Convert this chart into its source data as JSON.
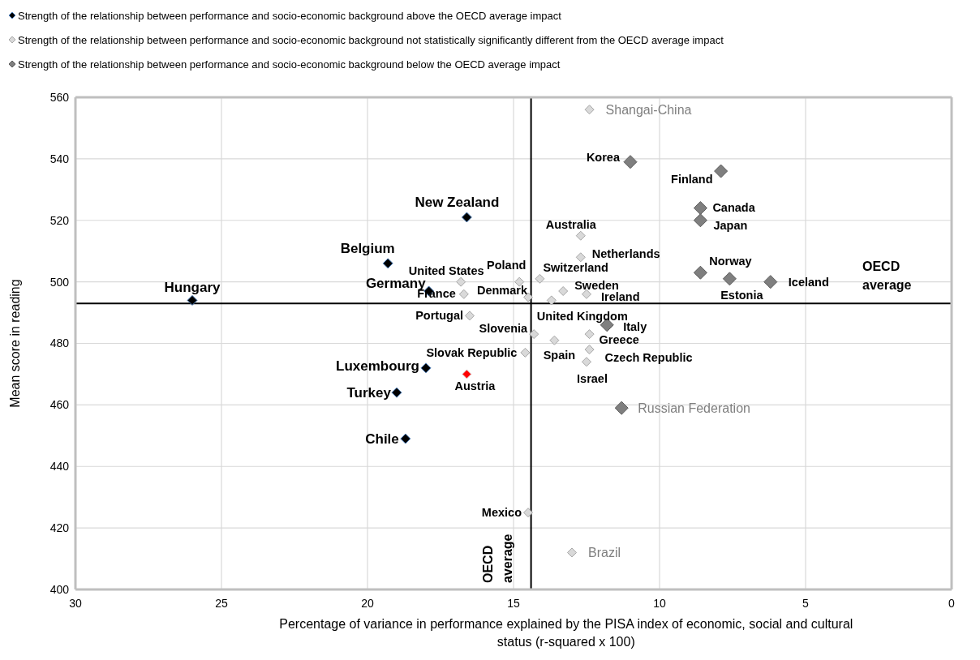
{
  "chart_data": {
    "type": "scatter",
    "xlabel": "Percentage of variance in performance explained by the PISA index of economic, social and cultural status (r-squared x 100)",
    "ylabel": "Mean score in reading",
    "xlim": [
      30,
      0
    ],
    "xticks": [
      30,
      25,
      20,
      15,
      10,
      5,
      0
    ],
    "ylim": [
      400,
      560
    ],
    "yticks": [
      400,
      420,
      440,
      460,
      480,
      500,
      520,
      540,
      560
    ],
    "grid": true,
    "legend": "top left",
    "marker": "diamond",
    "series": [
      {
        "name": "Strength of the relationship between performance and socio-economic background above the OECD average impact",
        "color": "#000000",
        "x": [
          26.0,
          19.3,
          17.9,
          16.6,
          18.0,
          19.0,
          18.7
        ],
        "values": [
          494,
          506,
          497,
          521,
          472,
          464,
          449
        ]
      },
      {
        "name": "Strength of the relationship between performance and socio-economic background not statistically significantly different from the OECD average impact",
        "color": "#d9d9d9",
        "x": [
          16.8,
          16.7,
          16.5,
          14.8,
          14.5,
          14.1,
          13.3,
          13.7,
          12.5,
          12.7,
          12.7,
          14.3,
          13.6,
          14.6,
          12.4,
          12.4,
          12.5,
          12.4,
          14.5,
          13.0
        ],
        "values": [
          500,
          496,
          489,
          500,
          495,
          501,
          497,
          494,
          496,
          515,
          508,
          483,
          481,
          477,
          483,
          478,
          474,
          556,
          425,
          412
        ]
      },
      {
        "name": "Strength of the relationship between performance and socio-economic background below the OECD average impact",
        "color": "#7f7f7f",
        "x": [
          11.0,
          7.9,
          8.6,
          8.6,
          8.6,
          7.6,
          6.2,
          11.8,
          11.3
        ],
        "values": [
          539,
          536,
          524,
          520,
          503,
          501,
          500,
          486,
          459
        ]
      },
      {
        "color": "#ff0000",
        "x": [
          16.6
        ],
        "values": [
          470
        ]
      }
    ],
    "ref_lines": [
      {
        "axis": "x",
        "value": 14.4,
        "label": "OECD average",
        "color": "#000000"
      },
      {
        "axis": "y",
        "value": 493,
        "label": "OECD average",
        "color": "#000000"
      }
    ],
    "annotations": [
      {
        "text": "Hungary",
        "x": 26.0,
        "y": 494
      },
      {
        "text": "Belgium",
        "x": 19.3,
        "y": 506
      },
      {
        "text": "Germany",
        "x": 17.9,
        "y": 497
      },
      {
        "text": "New Zealand",
        "x": 16.6,
        "y": 521
      },
      {
        "text": "Luxembourg",
        "x": 18.0,
        "y": 472
      },
      {
        "text": "Turkey",
        "x": 19.0,
        "y": 464
      },
      {
        "text": "Chile",
        "x": 18.7,
        "y": 449
      },
      {
        "text": "United States",
        "x": 16.8,
        "y": 500
      },
      {
        "text": "France",
        "x": 16.7,
        "y": 496
      },
      {
        "text": "Portugal",
        "x": 16.5,
        "y": 489
      },
      {
        "text": "Poland",
        "x": 14.8,
        "y": 500
      },
      {
        "text": "Denmark",
        "x": 14.5,
        "y": 495
      },
      {
        "text": "Switzerland",
        "x": 14.1,
        "y": 501
      },
      {
        "text": "Sweden",
        "x": 13.3,
        "y": 497
      },
      {
        "text": "United Kingdom",
        "x": 13.7,
        "y": 494
      },
      {
        "text": "Ireland",
        "x": 12.5,
        "y": 496
      },
      {
        "text": "Australia",
        "x": 12.7,
        "y": 515
      },
      {
        "text": "Netherlands",
        "x": 12.7,
        "y": 508
      },
      {
        "text": "Slovenia",
        "x": 14.3,
        "y": 483
      },
      {
        "text": "Spain",
        "x": 13.6,
        "y": 481
      },
      {
        "text": "Slovak Republic",
        "x": 14.6,
        "y": 477
      },
      {
        "text": "Greece",
        "x": 12.4,
        "y": 483
      },
      {
        "text": "Czech Republic",
        "x": 12.4,
        "y": 478
      },
      {
        "text": "Israel",
        "x": 12.5,
        "y": 474
      },
      {
        "text": "Shangai-China",
        "x": 12.4,
        "y": 556
      },
      {
        "text": "Mexico",
        "x": 14.5,
        "y": 425
      },
      {
        "text": "Brazil",
        "x": 13.0,
        "y": 412
      },
      {
        "text": "Korea",
        "x": 11.0,
        "y": 539
      },
      {
        "text": "Finland",
        "x": 7.9,
        "y": 536
      },
      {
        "text": "Canada",
        "x": 8.6,
        "y": 524
      },
      {
        "text": "Japan",
        "x": 8.6,
        "y": 520
      },
      {
        "text": "Norway",
        "x": 8.6,
        "y": 503
      },
      {
        "text": "Estonia",
        "x": 7.6,
        "y": 501
      },
      {
        "text": "Iceland",
        "x": 6.2,
        "y": 500
      },
      {
        "text": "Italy",
        "x": 11.8,
        "y": 486
      },
      {
        "text": "Russian Federation",
        "x": 11.3,
        "y": 459
      },
      {
        "text": "Austria",
        "x": 16.6,
        "y": 470
      }
    ]
  }
}
